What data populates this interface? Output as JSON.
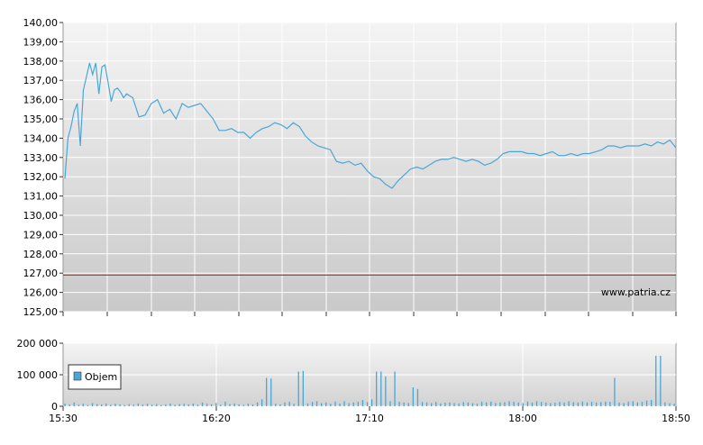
{
  "chart_data": [
    {
      "type": "line",
      "ylim": [
        125,
        140
      ],
      "y_ticks": [
        "140,00",
        "139,00",
        "138,00",
        "137,00",
        "136,00",
        "135,00",
        "134,00",
        "133,00",
        "132,00",
        "131,00",
        "130,00",
        "129,00",
        "128,00",
        "127,00",
        "126,00",
        "125,00"
      ],
      "reference_line": {
        "value": 126.9,
        "color": "#cc3333"
      },
      "watermark": "www.patria.cz",
      "line_color": "#4aa6d6",
      "series": [
        {
          "x": [
            0,
            1,
            2,
            3,
            4,
            5,
            6,
            7,
            8,
            9,
            10,
            11,
            12,
            13,
            14,
            15,
            16,
            17,
            18,
            19,
            20,
            22,
            24,
            26,
            28,
            30,
            32,
            34,
            36,
            38,
            40,
            42,
            44,
            46,
            48,
            50,
            52,
            54,
            56,
            58,
            60,
            62,
            64,
            66,
            68,
            70,
            72,
            74,
            76,
            78,
            80,
            82,
            84,
            86,
            88,
            90,
            92,
            94,
            96,
            98,
            100,
            102,
            104,
            106,
            108,
            110,
            112,
            114,
            116,
            118,
            120,
            122,
            124,
            126,
            128,
            130,
            132,
            134,
            136,
            138,
            140,
            142,
            144,
            146,
            148,
            150,
            152,
            154,
            156,
            158,
            160,
            162,
            164,
            166,
            168,
            170,
            172,
            174,
            176,
            178,
            180,
            182,
            184,
            186,
            188,
            190,
            192,
            194,
            196,
            198
          ],
          "values": [
            131.9,
            134.0,
            134.6,
            135.4,
            135.8,
            133.6,
            136.5,
            137.2,
            137.9,
            137.3,
            137.9,
            136.3,
            137.7,
            137.8,
            136.9,
            135.9,
            136.5,
            136.6,
            136.4,
            136.1,
            136.3,
            136.1,
            135.1,
            135.2,
            135.8,
            136.0,
            135.3,
            135.5,
            135.0,
            135.8,
            135.6,
            135.7,
            135.8,
            135.4,
            135.0,
            134.4,
            134.4,
            134.5,
            134.3,
            134.3,
            134.0,
            134.3,
            134.5,
            134.6,
            134.8,
            134.7,
            134.5,
            134.8,
            134.6,
            134.1,
            133.8,
            133.6,
            133.5,
            133.4,
            132.8,
            132.7,
            132.8,
            132.6,
            132.7,
            132.3,
            132.0,
            131.9,
            131.6,
            131.4,
            131.8,
            132.1,
            132.4,
            132.5,
            132.4,
            132.6,
            132.8,
            132.9,
            132.9,
            133.0,
            132.9,
            132.8,
            132.9,
            132.8,
            132.6,
            132.7,
            132.9,
            133.2,
            133.3,
            133.3,
            133.3,
            133.2,
            133.2,
            133.1,
            133.2,
            133.3,
            133.1,
            133.1,
            133.2,
            133.1,
            133.2,
            133.2,
            133.3,
            133.4,
            133.6,
            133.6,
            133.5,
            133.6,
            133.6,
            133.6,
            133.7,
            133.6,
            133.8,
            133.7,
            133.9,
            133.5
          ]
        }
      ]
    },
    {
      "type": "bar",
      "ylim": [
        0,
        200000
      ],
      "y_ticks": [
        "200 000",
        "100 000",
        "0"
      ],
      "x_ticks": [
        "15:30",
        "16:20",
        "17:10",
        "18:00",
        "18:50"
      ],
      "legend": {
        "label": "Objem",
        "position": "top-left"
      },
      "bar_color": "#4aa6d6",
      "values": [
        9000,
        6000,
        12000,
        5000,
        8000,
        4000,
        10000,
        7000,
        6000,
        9000,
        5000,
        8000,
        6000,
        4000,
        7000,
        5000,
        9000,
        6000,
        8000,
        5000,
        7000,
        4000,
        6000,
        9000,
        5000,
        7000,
        8000,
        6000,
        9000,
        5000,
        12000,
        8000,
        6000,
        10000,
        5000,
        15000,
        7000,
        9000,
        6000,
        5000,
        8000,
        6000,
        12000,
        22000,
        90000,
        88000,
        8000,
        6000,
        12000,
        14000,
        8000,
        110000,
        112000,
        9000,
        14000,
        16000,
        10000,
        12000,
        8000,
        15000,
        9000,
        16000,
        10000,
        12000,
        14000,
        20000,
        13000,
        22000,
        110000,
        110000,
        95000,
        16000,
        110000,
        14000,
        12000,
        10000,
        60000,
        55000,
        14000,
        12000,
        10000,
        14000,
        9000,
        11000,
        12000,
        10000,
        9000,
        13000,
        12000,
        10000,
        8000,
        14000,
        12000,
        15000,
        10000,
        12000,
        13000,
        16000,
        14000,
        12000,
        10000,
        15000,
        12000,
        16000,
        14000,
        12000,
        10000,
        11000,
        14000,
        12000,
        16000,
        13000,
        12000,
        15000,
        12000,
        14000,
        12000,
        13000,
        15000,
        14000,
        90000,
        12000,
        10000,
        15000,
        16000,
        12000,
        14000,
        18000,
        20000,
        160000,
        160000,
        12000,
        10000,
        8000
      ]
    }
  ]
}
